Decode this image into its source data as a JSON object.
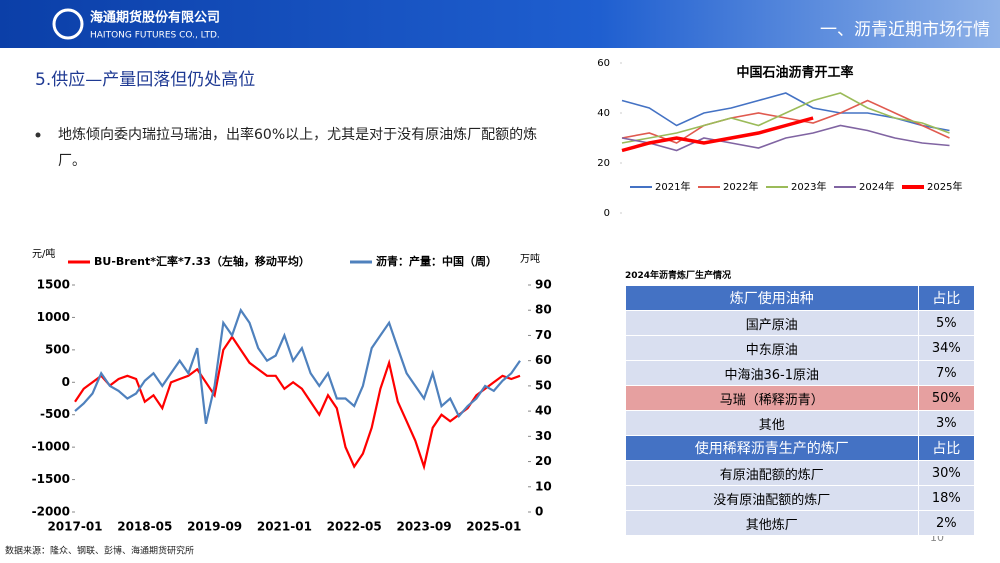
{
  "header": {
    "company_cn": "海通期货股份有限公司",
    "company_en": "HAITONG FUTURES CO., LTD.",
    "section": "一、沥青近期市场行情"
  },
  "slide": {
    "title": "5.供应—产量回落但仍处高位",
    "bullet": "地炼倾向委内瑞拉马瑞油，出率60%以上，尤其是对于没有原油炼厂配额的炼厂。",
    "source": "数据来源：隆众、钢联、彭博、海通期货研究所",
    "page": "10"
  },
  "chart_data": [
    {
      "type": "line",
      "ylabel": "元/吨",
      "y2label": "万吨",
      "categories": [
        "2017-01",
        "2017-03",
        "2017-05",
        "2017-07",
        "2017-09",
        "2017-11",
        "2018-01",
        "2018-03",
        "2018-05",
        "2018-07",
        "2018-09",
        "2018-11",
        "2019-01",
        "2019-03",
        "2019-05",
        "2019-07",
        "2019-09",
        "2019-11",
        "2020-01",
        "2020-03",
        "2020-05",
        "2020-07",
        "2020-09",
        "2020-11",
        "2021-01",
        "2021-03",
        "2021-05",
        "2021-07",
        "2021-09",
        "2021-11",
        "2022-01",
        "2022-03",
        "2022-05",
        "2022-07",
        "2022-09",
        "2022-11",
        "2023-01",
        "2023-03",
        "2023-05",
        "2023-07",
        "2023-09",
        "2023-11",
        "2024-01",
        "2024-03",
        "2024-05",
        "2024-07",
        "2024-09",
        "2024-11",
        "2025-01",
        "2025-03",
        "2025-05",
        "2025-07"
      ],
      "xticks": [
        "2017-01",
        "2018-05",
        "2019-09",
        "2021-01",
        "2022-05",
        "2023-09",
        "2025-01"
      ],
      "ylim": [
        -2000,
        1500
      ],
      "yticks": [
        -2000,
        -1500,
        -1000,
        -500,
        0,
        500,
        1000,
        1500
      ],
      "y2lim": [
        0,
        90
      ],
      "y2ticks": [
        0,
        10,
        20,
        30,
        40,
        50,
        60,
        70,
        80,
        90
      ],
      "series": [
        {
          "name": "BU-Brent*汇率*7.33（左轴，移动平均）",
          "color": "#ff0000",
          "values": [
            -300,
            -100,
            0,
            100,
            -50,
            50,
            100,
            50,
            -300,
            -200,
            -400,
            0,
            50,
            100,
            200,
            0,
            -200,
            500,
            700,
            500,
            300,
            200,
            100,
            100,
            -100,
            0,
            -100,
            -300,
            -500,
            -200,
            -400,
            -1000,
            -1300,
            -1100,
            -700,
            -100,
            300,
            -300,
            -600,
            -900,
            -1300,
            -700,
            -500,
            -600,
            -500,
            -400,
            -200,
            -100,
            0,
            100,
            50,
            100
          ]
        },
        {
          "name": "沥青：产量：中国（周）",
          "color": "#4f81bd",
          "axis": "y2",
          "values": [
            40,
            43,
            47,
            55,
            50,
            48,
            45,
            47,
            52,
            55,
            50,
            55,
            60,
            55,
            65,
            35,
            50,
            75,
            70,
            80,
            75,
            65,
            60,
            62,
            70,
            60,
            65,
            55,
            50,
            55,
            45,
            45,
            42,
            50,
            65,
            70,
            75,
            65,
            55,
            50,
            45,
            55,
            42,
            45,
            38,
            42,
            45,
            50,
            48,
            52,
            55,
            60
          ]
        }
      ]
    },
    {
      "type": "line",
      "title": "中国石油沥青开工率",
      "x": [
        1,
        5,
        9,
        13,
        17,
        21,
        25,
        29,
        33,
        37,
        41,
        45,
        49
      ],
      "xlim": [
        1,
        52
      ],
      "ylim": [
        0,
        60
      ],
      "yticks": [
        0,
        20,
        40,
        60
      ],
      "series": [
        {
          "name": "2021年",
          "color": "#4472c4",
          "values": [
            45,
            42,
            35,
            40,
            42,
            45,
            48,
            42,
            40,
            40,
            38,
            35,
            33
          ]
        },
        {
          "name": "2022年",
          "color": "#e05a4f",
          "values": [
            30,
            32,
            28,
            35,
            38,
            40,
            38,
            36,
            40,
            45,
            40,
            35,
            30
          ]
        },
        {
          "name": "2023年",
          "color": "#9bbb59",
          "values": [
            28,
            30,
            32,
            35,
            38,
            35,
            40,
            45,
            48,
            42,
            38,
            36,
            32
          ]
        },
        {
          "name": "2024年",
          "color": "#8064a2",
          "values": [
            30,
            28,
            25,
            30,
            28,
            26,
            30,
            32,
            35,
            33,
            30,
            28,
            27
          ]
        },
        {
          "name": "2025年",
          "color": "#ff0000",
          "values": [
            25,
            28,
            30,
            28,
            30,
            32,
            35,
            38,
            null,
            null,
            null,
            null,
            null
          ]
        }
      ]
    }
  ],
  "table": {
    "title": "2024年沥青炼厂生产情况",
    "header": [
      "炼厂使用油种",
      "占比"
    ],
    "rows": [
      [
        "国产原油",
        "5%"
      ],
      [
        "中东原油",
        "34%"
      ],
      [
        "中海油36-1原油",
        "7%"
      ],
      [
        "马瑞（稀释沥青）",
        "50%"
      ],
      [
        "其他",
        "3%"
      ]
    ],
    "header2": [
      "使用稀释沥青生产的炼厂",
      "占比"
    ],
    "rows2": [
      [
        "有原油配额的炼厂",
        "30%"
      ],
      [
        "没有原油配额的炼厂",
        "18%"
      ],
      [
        "其他炼厂",
        "2%"
      ]
    ]
  }
}
